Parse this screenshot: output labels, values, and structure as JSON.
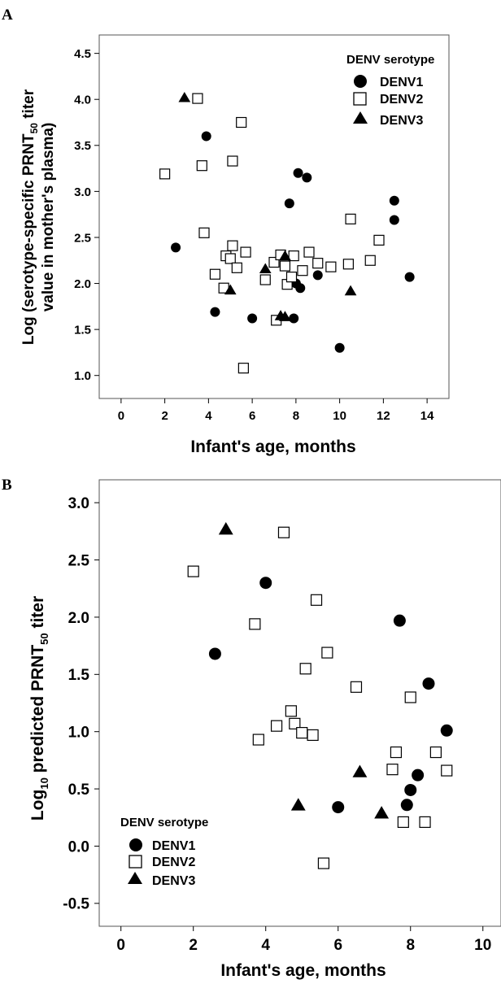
{
  "chart_data": [
    {
      "type": "scatter",
      "panel_label": "A",
      "xlabel": "Infant's age, months",
      "ylabel_line1": "Log (serotype-specific PRNT",
      "ylabel_sub": "50",
      "ylabel_after_sub": " titer",
      "ylabel_line2": "value in mother's plasma)",
      "xlim": [
        -1,
        15
      ],
      "ylim": [
        0.75,
        4.7
      ],
      "x_ticks": [
        0,
        2,
        4,
        6,
        8,
        10,
        12,
        14
      ],
      "x_tick_labels": [
        "0",
        "2",
        "4",
        "6",
        "8",
        "10",
        "12",
        "14"
      ],
      "y_ticks": [
        1.0,
        1.5,
        2.0,
        2.5,
        3.0,
        3.5,
        4.0,
        4.5
      ],
      "y_tick_labels": [
        "1.0",
        "1.5",
        "2.0",
        "2.5",
        "3.0",
        "3.5",
        "4.0",
        "4.5"
      ],
      "grid": false,
      "legend": {
        "title": "DENV serotype",
        "placement": "top-right",
        "entries": [
          "DENV1",
          "DENV2",
          "DENV3"
        ]
      },
      "series": [
        {
          "name": "DENV1",
          "marker": "filled-circle",
          "points": [
            [
              3.9,
              3.6
            ],
            [
              2.5,
              2.39
            ],
            [
              4.3,
              1.69
            ],
            [
              6.0,
              1.62
            ],
            [
              7.7,
              2.87
            ],
            [
              7.9,
              1.62
            ],
            [
              8.0,
              2.0
            ],
            [
              8.1,
              3.2
            ],
            [
              8.2,
              1.95
            ],
            [
              8.5,
              3.15
            ],
            [
              9.0,
              2.09
            ],
            [
              10.0,
              1.3
            ],
            [
              12.5,
              2.9
            ],
            [
              12.5,
              2.69
            ],
            [
              13.2,
              2.07
            ]
          ]
        },
        {
          "name": "DENV2",
          "marker": "open-square",
          "points": [
            [
              2.0,
              3.19
            ],
            [
              3.5,
              4.01
            ],
            [
              3.7,
              3.28
            ],
            [
              3.8,
              2.55
            ],
            [
              4.3,
              2.1
            ],
            [
              4.7,
              1.95
            ],
            [
              4.8,
              2.3
            ],
            [
              5.0,
              2.27
            ],
            [
              5.1,
              2.41
            ],
            [
              5.1,
              3.33
            ],
            [
              5.3,
              2.17
            ],
            [
              5.5,
              3.75
            ],
            [
              5.6,
              1.08
            ],
            [
              5.7,
              2.34
            ],
            [
              6.6,
              2.04
            ],
            [
              7.0,
              2.23
            ],
            [
              7.1,
              1.6
            ],
            [
              7.3,
              2.31
            ],
            [
              7.5,
              2.19
            ],
            [
              7.6,
              1.99
            ],
            [
              7.8,
              2.07
            ],
            [
              7.9,
              2.3
            ],
            [
              8.3,
              2.14
            ],
            [
              8.6,
              2.34
            ],
            [
              9.0,
              2.22
            ],
            [
              9.6,
              2.18
            ],
            [
              10.4,
              2.21
            ],
            [
              10.5,
              2.7
            ],
            [
              11.4,
              2.25
            ],
            [
              11.8,
              2.47
            ]
          ]
        },
        {
          "name": "DENV3",
          "marker": "filled-triangle",
          "points": [
            [
              2.9,
              4.02
            ],
            [
              5.0,
              1.93
            ],
            [
              6.6,
              2.16
            ],
            [
              7.3,
              1.65
            ],
            [
              7.5,
              2.3
            ],
            [
              7.5,
              1.64
            ],
            [
              10.5,
              1.92
            ]
          ]
        }
      ]
    },
    {
      "type": "scatter",
      "panel_label": "B",
      "xlabel": "Infant's age, months",
      "ylabel_prefix": "Log",
      "ylabel_sub1": "10",
      "ylabel_mid": " predicted PRNT",
      "ylabel_sub2": "50",
      "ylabel_suffix": " titer",
      "xlim": [
        -0.6,
        10.5
      ],
      "ylim": [
        -0.7,
        3.2
      ],
      "x_ticks": [
        0,
        2,
        4,
        6,
        8,
        10
      ],
      "x_tick_labels": [
        "0",
        "2",
        "4",
        "6",
        "8",
        "10"
      ],
      "y_ticks": [
        -0.5,
        0.0,
        0.5,
        1.0,
        1.5,
        2.0,
        2.5,
        3.0
      ],
      "y_tick_labels": [
        "-0.5",
        "0.0",
        "0.5",
        "1.0",
        "1.5",
        "2.0",
        "2.5",
        "3.0"
      ],
      "grid": false,
      "legend": {
        "title": "DENV serotype",
        "placement": "bottom-left",
        "entries": [
          "DENV1",
          "DENV2",
          "DENV3"
        ]
      },
      "series": [
        {
          "name": "DENV1",
          "marker": "filled-circle",
          "points": [
            [
              2.6,
              1.68
            ],
            [
              4.0,
              2.3
            ],
            [
              6.0,
              0.34
            ],
            [
              7.7,
              1.97
            ],
            [
              7.9,
              0.36
            ],
            [
              8.0,
              0.49
            ],
            [
              8.2,
              0.62
            ],
            [
              8.5,
              1.42
            ],
            [
              9.0,
              1.01
            ]
          ]
        },
        {
          "name": "DENV2",
          "marker": "open-square",
          "points": [
            [
              2.0,
              2.4
            ],
            [
              3.7,
              1.94
            ],
            [
              3.8,
              0.93
            ],
            [
              4.3,
              1.05
            ],
            [
              4.5,
              2.74
            ],
            [
              4.7,
              1.18
            ],
            [
              4.8,
              1.07
            ],
            [
              5.0,
              0.99
            ],
            [
              5.1,
              1.55
            ],
            [
              5.3,
              0.97
            ],
            [
              5.4,
              2.15
            ],
            [
              5.6,
              -0.15
            ],
            [
              5.7,
              1.69
            ],
            [
              6.5,
              1.39
            ],
            [
              7.5,
              0.67
            ],
            [
              7.6,
              0.82
            ],
            [
              7.8,
              0.21
            ],
            [
              8.0,
              1.3
            ],
            [
              8.4,
              0.21
            ],
            [
              8.7,
              0.82
            ],
            [
              9.0,
              0.66
            ]
          ]
        },
        {
          "name": "DENV3",
          "marker": "filled-triangle",
          "points": [
            [
              2.9,
              2.77
            ],
            [
              4.9,
              0.36
            ],
            [
              6.6,
              0.65
            ],
            [
              7.2,
              0.29
            ]
          ]
        }
      ]
    }
  ]
}
